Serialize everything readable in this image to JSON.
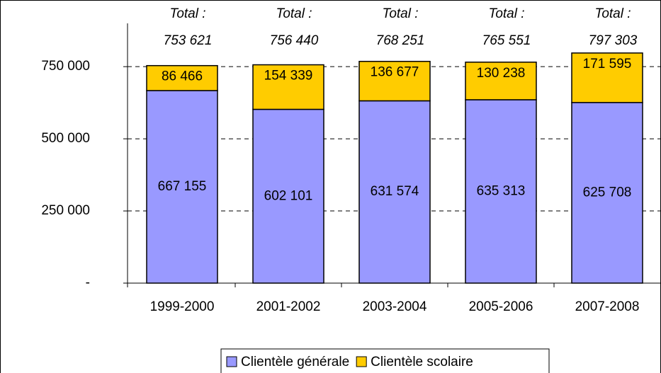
{
  "chart_data": {
    "type": "stacked_bar",
    "categories": [
      "1999-2000",
      "2001-2002",
      "2003-2004",
      "2005-2006",
      "2007-2008"
    ],
    "series": [
      {
        "name": "Clientèle générale",
        "color": "#9999ff",
        "values": [
          667155,
          602101,
          631574,
          635313,
          625708
        ],
        "value_labels": [
          "667 155",
          "602 101",
          "631 574",
          "635 313",
          "625 708"
        ]
      },
      {
        "name": "Clientèle scolaire",
        "color": "#ffcc00",
        "values": [
          86466,
          154339,
          136677,
          130238,
          171595
        ],
        "value_labels": [
          "86 466",
          "154 339",
          "136 677",
          "130 238",
          "171 595"
        ]
      }
    ],
    "totals": {
      "prefix": "Total :",
      "values": [
        753621,
        756440,
        768251,
        765551,
        797303
      ],
      "value_labels": [
        "753 621",
        "756 440",
        "768 251",
        "765 551",
        "797 303"
      ]
    },
    "ylim": [
      0,
      900000
    ],
    "yticks": [
      {
        "value": 0,
        "label": "-"
      },
      {
        "value": 250000,
        "label": "250 000"
      },
      {
        "value": 500000,
        "label": "500 000"
      },
      {
        "value": 750000,
        "label": "750 000"
      }
    ],
    "grid": true,
    "legend": "bottom"
  }
}
